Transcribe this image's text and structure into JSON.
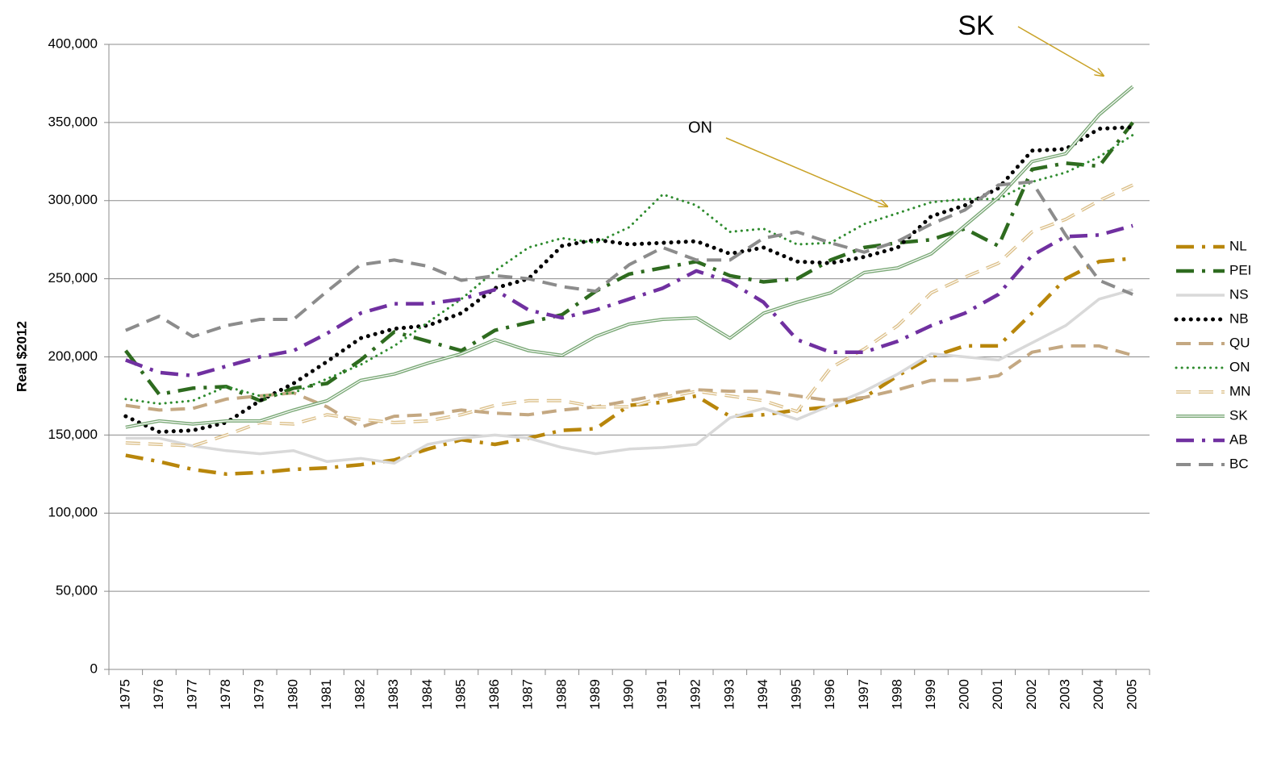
{
  "chart_data": {
    "type": "line",
    "y_label": "Real $2012",
    "annotations": [
      "ON",
      "SK"
    ],
    "categories": [
      "1975",
      "1976",
      "1977",
      "1978",
      "1979",
      "1980",
      "1981",
      "1982",
      "1983",
      "1984",
      "1985",
      "1986",
      "1987",
      "1988",
      "1989",
      "1990",
      "1991",
      "1992",
      "1993",
      "1994",
      "1995",
      "1996",
      "1997",
      "1998",
      "1999",
      "2000",
      "2001",
      "2002",
      "2003",
      "2004",
      "2005"
    ],
    "ylim": [
      0,
      400000
    ],
    "yticks": [
      {
        "value": 0,
        "label": "0"
      },
      {
        "value": 50000,
        "label": "50,000"
      },
      {
        "value": 100000,
        "label": "100,000"
      },
      {
        "value": 150000,
        "label": "150,000"
      },
      {
        "value": 200000,
        "label": "200,000"
      },
      {
        "value": 250000,
        "label": "250,000"
      },
      {
        "value": 300000,
        "label": "300,000"
      },
      {
        "value": 350000,
        "label": "350,000"
      },
      {
        "value": 400000,
        "label": "400,000"
      }
    ],
    "grid": true,
    "legend": "right",
    "series": [
      {
        "name": "NL",
        "color": "#b8860b",
        "line_style": "dashdot",
        "values": [
          137000,
          133000,
          128000,
          125000,
          126000,
          128000,
          129000,
          131000,
          134000,
          141000,
          147000,
          144000,
          148000,
          153000,
          154000,
          169000,
          171000,
          175000,
          162000,
          163000,
          166000,
          168000,
          174000,
          188000,
          200000,
          207000,
          207000,
          228000,
          250000,
          261000,
          263000
        ]
      },
      {
        "name": "PEI",
        "color": "#2e6b1f",
        "line_style": "dashdot",
        "values": [
          204000,
          176000,
          180000,
          181000,
          172000,
          180000,
          183000,
          198000,
          216000,
          210000,
          204000,
          217000,
          222000,
          227000,
          242000,
          253000,
          257000,
          261000,
          252000,
          248000,
          250000,
          262000,
          270000,
          273000,
          275000,
          282000,
          271000,
          320000,
          324000,
          322000,
          350000
        ]
      },
      {
        "name": "NS",
        "color": "#d9d9d9",
        "line_style": "solid",
        "values": [
          148000,
          148000,
          143000,
          140000,
          138000,
          140000,
          133000,
          135000,
          132000,
          144000,
          148000,
          150000,
          148000,
          142000,
          138000,
          141000,
          142000,
          144000,
          161000,
          167000,
          160000,
          169000,
          178000,
          189000,
          202000,
          200000,
          198000,
          209000,
          220000,
          237000,
          243000
        ]
      },
      {
        "name": "NB",
        "color": "#000000",
        "line_style": "dot",
        "values": [
          162000,
          152000,
          153000,
          158000,
          172000,
          183000,
          197000,
          212000,
          218000,
          220000,
          228000,
          244000,
          250000,
          271000,
          275000,
          272000,
          273000,
          274000,
          266000,
          270000,
          261000,
          260000,
          264000,
          270000,
          290000,
          297000,
          308000,
          332000,
          333000,
          346000,
          347000
        ]
      },
      {
        "name": "QU",
        "color": "#c4a882",
        "line_style": "dash",
        "values": [
          169000,
          166000,
          167000,
          173000,
          175000,
          177000,
          168000,
          155000,
          162000,
          163000,
          166000,
          164000,
          163000,
          166000,
          168000,
          172000,
          176000,
          179000,
          178000,
          178000,
          175000,
          172000,
          174000,
          179000,
          185000,
          185000,
          188000,
          203000,
          207000,
          207000,
          201000
        ]
      },
      {
        "name": "ON",
        "color": "#2e8b2e",
        "line_style": "smalldot",
        "values": [
          173000,
          170000,
          172000,
          181000,
          175000,
          177000,
          186000,
          195000,
          207000,
          222000,
          237000,
          255000,
          270000,
          276000,
          273000,
          283000,
          304000,
          297000,
          280000,
          282000,
          272000,
          273000,
          285000,
          292000,
          299000,
          301000,
          301000,
          312000,
          318000,
          328000,
          342000
        ]
      },
      {
        "name": "MN",
        "color": "#dcc08a",
        "line_style": "doubledash",
        "values": [
          145000,
          144000,
          143000,
          150000,
          158000,
          157000,
          163000,
          160000,
          158000,
          159000,
          163000,
          169000,
          172000,
          172000,
          168000,
          168000,
          174000,
          178000,
          175000,
          172000,
          165000,
          193000,
          205000,
          220000,
          241000,
          251000,
          260000,
          280000,
          288000,
          300000,
          310000
        ]
      },
      {
        "name": "SK",
        "color": "#7aa876",
        "line_style": "double",
        "values": [
          155000,
          159000,
          157000,
          159000,
          159000,
          166000,
          172000,
          185000,
          189000,
          196000,
          202000,
          211000,
          204000,
          201000,
          213000,
          221000,
          224000,
          225000,
          212000,
          228000,
          235000,
          241000,
          254000,
          257000,
          266000,
          284000,
          302000,
          325000,
          330000,
          355000,
          373000
        ]
      },
      {
        "name": "AB",
        "color": "#7030a0",
        "line_style": "dashdot",
        "values": [
          198000,
          190000,
          188000,
          194000,
          200000,
          204000,
          215000,
          228000,
          234000,
          234000,
          237000,
          243000,
          230000,
          225000,
          230000,
          237000,
          244000,
          255000,
          248000,
          235000,
          211000,
          203000,
          203000,
          210000,
          220000,
          228000,
          240000,
          265000,
          277000,
          278000,
          284000
        ]
      },
      {
        "name": "BC",
        "color": "#8c8c8c",
        "line_style": "dash",
        "values": [
          217000,
          226000,
          213000,
          220000,
          224000,
          224000,
          242000,
          259000,
          262000,
          258000,
          249000,
          252000,
          250000,
          245000,
          242000,
          259000,
          270000,
          262000,
          262000,
          276000,
          280000,
          273000,
          267000,
          274000,
          285000,
          294000,
          310000,
          312000,
          278000,
          249000,
          240000
        ]
      }
    ]
  }
}
